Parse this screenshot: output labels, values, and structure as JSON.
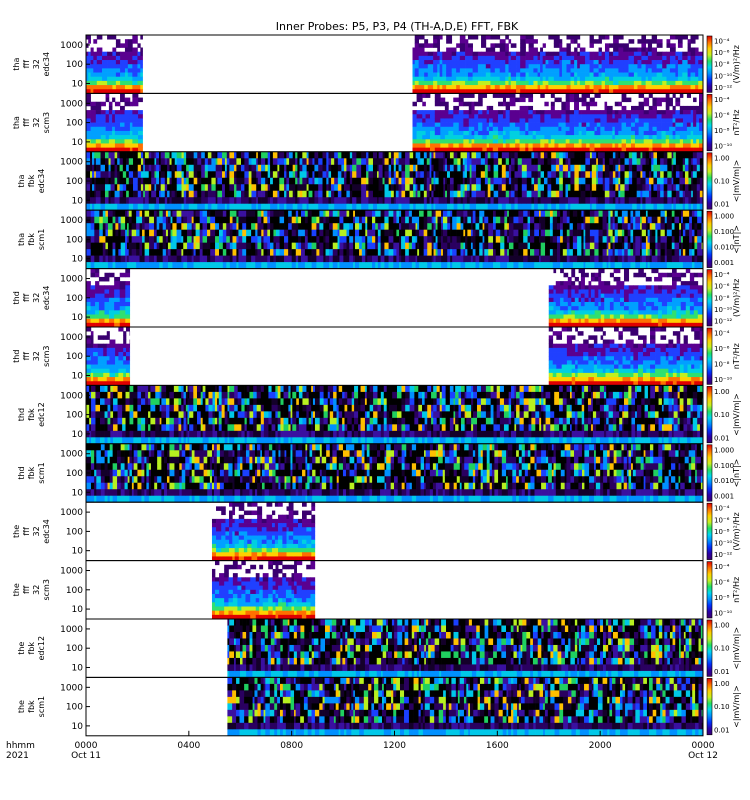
{
  "title": "Inner Probes: P5, P3, P4 (TH-A,D,E) FFT, FBK",
  "colorbar_gradient": [
    "#3a0070",
    "#2a00a8",
    "#0030ff",
    "#0090ff",
    "#00d8f0",
    "#20e060",
    "#c8f020",
    "#ffd000",
    "#ff7000",
    "#e00000"
  ],
  "chart_data": {
    "type": "heatmap",
    "title": "Inner Probes: P5, P3, P4 (TH-A,D,E) FFT, FBK",
    "x_axis": {
      "range_hours": [
        0,
        24
      ],
      "ticks": [
        {
          "hour": 0,
          "label": "0000",
          "sub": "Oct 11"
        },
        {
          "hour": 4,
          "label": "0400",
          "sub": ""
        },
        {
          "hour": 8,
          "label": "0800",
          "sub": ""
        },
        {
          "hour": 12,
          "label": "1200",
          "sub": ""
        },
        {
          "hour": 16,
          "label": "1600",
          "sub": ""
        },
        {
          "hour": 20,
          "label": "2000",
          "sub": ""
        },
        {
          "hour": 24,
          "label": "0000",
          "sub": "Oct 12"
        }
      ],
      "label_line1": "hhmm",
      "label_line2": "2021"
    },
    "panels": [
      {
        "label": [
          "tha",
          "fff",
          "32",
          "edc34"
        ],
        "yticks": [
          "1000",
          "100",
          "10"
        ],
        "cbar_ticks": [
          "10⁻⁴",
          "10⁻⁶",
          "10⁻⁸",
          "10⁻¹⁰",
          "10⁻¹²"
        ],
        "cbar_label": "(V/m)²/Hz",
        "spans": [
          [
            0.0,
            2.2
          ],
          [
            12.7,
            24.0
          ]
        ],
        "kind": "fff"
      },
      {
        "label": [
          "tha",
          "fff",
          "32",
          "scm3"
        ],
        "yticks": [
          "1000",
          "100",
          "10"
        ],
        "cbar_ticks": [
          "10⁻⁴",
          "10⁻⁶",
          "10⁻⁸",
          "10⁻¹⁰"
        ],
        "cbar_label": "nT²/Hz",
        "spans": [
          [
            0.0,
            2.2
          ],
          [
            12.7,
            24.0
          ]
        ],
        "kind": "fff"
      },
      {
        "label": [
          "tha",
          "fbk",
          "edc34"
        ],
        "yticks": [
          "1000",
          "100",
          "10"
        ],
        "cbar_ticks": [
          "1.00",
          "0.10",
          "0.01"
        ],
        "cbar_label": "<|mV/m|>",
        "spans": [
          [
            0.0,
            24.0
          ]
        ],
        "kind": "fbk"
      },
      {
        "label": [
          "tha",
          "fbk",
          "scm1"
        ],
        "yticks": [
          "1000",
          "100",
          "10"
        ],
        "cbar_ticks": [
          "1.000",
          "0.100",
          "0.010",
          "0.001"
        ],
        "cbar_label": "<|nT|>",
        "spans": [
          [
            0.0,
            24.0
          ]
        ],
        "kind": "fbk"
      },
      {
        "label": [
          "thd",
          "fff",
          "32",
          "edc34"
        ],
        "yticks": [
          "1000",
          "100",
          "10"
        ],
        "cbar_ticks": [
          "10⁻⁴",
          "10⁻⁶",
          "10⁻⁸",
          "10⁻¹⁰",
          "10⁻¹²"
        ],
        "cbar_label": "(V/m)²/Hz",
        "spans": [
          [
            0.0,
            1.7
          ],
          [
            18.0,
            24.0
          ]
        ],
        "kind": "fff"
      },
      {
        "label": [
          "thd",
          "fff",
          "32",
          "scm3"
        ],
        "yticks": [
          "1000",
          "100",
          "10"
        ],
        "cbar_ticks": [
          "10⁻⁴",
          "10⁻⁶",
          "10⁻⁸",
          "10⁻¹⁰"
        ],
        "cbar_label": "nT²/Hz",
        "spans": [
          [
            0.0,
            1.7
          ],
          [
            18.0,
            24.0
          ]
        ],
        "kind": "fff"
      },
      {
        "label": [
          "thd",
          "fbk",
          "edc12"
        ],
        "yticks": [
          "1000",
          "100",
          "10"
        ],
        "cbar_ticks": [
          "1.00",
          "0.10",
          "0.01"
        ],
        "cbar_label": "<|mV/m|>",
        "spans": [
          [
            0.0,
            24.0
          ]
        ],
        "kind": "fbk"
      },
      {
        "label": [
          "thd",
          "fbk",
          "scm1"
        ],
        "yticks": [
          "1000",
          "100",
          "10"
        ],
        "cbar_ticks": [
          "1.000",
          "0.100",
          "0.010",
          "0.001"
        ],
        "cbar_label": "<|nT|>",
        "spans": [
          [
            0.0,
            24.0
          ]
        ],
        "kind": "fbk"
      },
      {
        "label": [
          "the",
          "fff",
          "32",
          "edc34"
        ],
        "yticks": [
          "1000",
          "100",
          "10"
        ],
        "cbar_ticks": [
          "10⁻⁴",
          "10⁻⁶",
          "10⁻⁸",
          "10⁻¹⁰",
          "10⁻¹²"
        ],
        "cbar_label": "(V/m)²/Hz",
        "spans": [
          [
            4.9,
            8.9
          ]
        ],
        "kind": "fff"
      },
      {
        "label": [
          "the",
          "fff",
          "32",
          "scm3"
        ],
        "yticks": [
          "1000",
          "100",
          "10"
        ],
        "cbar_ticks": [
          "10⁻⁴",
          "10⁻⁶",
          "10⁻⁸",
          "10⁻¹⁰"
        ],
        "cbar_label": "nT²/Hz",
        "spans": [
          [
            4.9,
            8.9
          ]
        ],
        "kind": "fff"
      },
      {
        "label": [
          "the",
          "fbk",
          "edc12"
        ],
        "yticks": [
          "1000",
          "100",
          "10"
        ],
        "cbar_ticks": [
          "1.00",
          "0.10",
          "0.01"
        ],
        "cbar_label": "<|mV/m|>",
        "spans": [
          [
            5.5,
            24.0
          ]
        ],
        "kind": "fbk"
      },
      {
        "label": [
          "the",
          "fbk",
          "scm1"
        ],
        "yticks": [
          "1000",
          "100",
          "10"
        ],
        "cbar_ticks": [
          "1.00",
          "0.10",
          "0.01"
        ],
        "cbar_label": "<|mV/m|>",
        "spans": [
          [
            5.5,
            24.0
          ]
        ],
        "kind": "fbk"
      }
    ]
  }
}
